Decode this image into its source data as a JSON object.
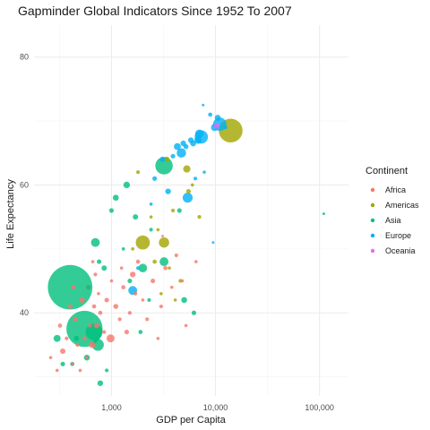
{
  "chart_data": {
    "type": "scatter",
    "title": "Gapminder Global Indicators Since 1952 To 2007",
    "xlabel": "GDP per Capita",
    "ylabel": "Life Expectancy",
    "x_scale": "log10",
    "xlim": [
      180,
      190000
    ],
    "ylim": [
      27,
      85
    ],
    "x_ticks": [
      1000,
      10000,
      100000
    ],
    "x_tick_labels": [
      "1,000",
      "10,000",
      "100,000"
    ],
    "y_ticks": [
      40,
      60,
      80
    ],
    "y_tick_labels": [
      "40",
      "60",
      "80"
    ],
    "grid": true,
    "legend_title": "Continent",
    "legend_position": "right",
    "marker_alpha": 0.8,
    "size_variable": "population (millions)",
    "series": [
      {
        "name": "Africa",
        "color": "#F8766D",
        "points": [
          {
            "x": 260,
            "y": 33,
            "pop": 3
          },
          {
            "x": 320,
            "y": 38,
            "pop": 5
          },
          {
            "x": 340,
            "y": 34,
            "pop": 8
          },
          {
            "x": 370,
            "y": 36,
            "pop": 4
          },
          {
            "x": 400,
            "y": 41,
            "pop": 6
          },
          {
            "x": 420,
            "y": 32,
            "pop": 3
          },
          {
            "x": 450,
            "y": 39,
            "pop": 7
          },
          {
            "x": 470,
            "y": 35,
            "pop": 4
          },
          {
            "x": 500,
            "y": 31,
            "pop": 3
          },
          {
            "x": 520,
            "y": 42,
            "pop": 9
          },
          {
            "x": 550,
            "y": 36,
            "pop": 5
          },
          {
            "x": 580,
            "y": 33,
            "pop": 3
          },
          {
            "x": 600,
            "y": 44,
            "pop": 6
          },
          {
            "x": 620,
            "y": 38,
            "pop": 4
          },
          {
            "x": 650,
            "y": 35,
            "pop": 12
          },
          {
            "x": 680,
            "y": 41,
            "pop": 5
          },
          {
            "x": 700,
            "y": 46,
            "pop": 4
          },
          {
            "x": 720,
            "y": 38,
            "pop": 8
          },
          {
            "x": 750,
            "y": 43,
            "pop": 3
          },
          {
            "x": 780,
            "y": 40,
            "pop": 5
          },
          {
            "x": 850,
            "y": 37,
            "pop": 4
          },
          {
            "x": 900,
            "y": 42,
            "pop": 6
          },
          {
            "x": 980,
            "y": 36,
            "pop": 18
          },
          {
            "x": 1000,
            "y": 45,
            "pop": 3
          },
          {
            "x": 1100,
            "y": 41,
            "pop": 7
          },
          {
            "x": 1200,
            "y": 39,
            "pop": 4
          },
          {
            "x": 1300,
            "y": 44,
            "pop": 5
          },
          {
            "x": 1400,
            "y": 37,
            "pop": 6
          },
          {
            "x": 1500,
            "y": 40,
            "pop": 4
          },
          {
            "x": 1600,
            "y": 46,
            "pop": 9
          },
          {
            "x": 1700,
            "y": 43,
            "pop": 4
          },
          {
            "x": 1800,
            "y": 48,
            "pop": 5
          },
          {
            "x": 2000,
            "y": 42,
            "pop": 3
          },
          {
            "x": 2200,
            "y": 39,
            "pop": 4
          },
          {
            "x": 2500,
            "y": 45,
            "pop": 6
          },
          {
            "x": 3000,
            "y": 41,
            "pop": 4
          },
          {
            "x": 3300,
            "y": 47,
            "pop": 5
          },
          {
            "x": 3800,
            "y": 44,
            "pop": 3
          },
          {
            "x": 4200,
            "y": 49,
            "pop": 4
          },
          {
            "x": 4800,
            "y": 45,
            "pop": 3
          },
          {
            "x": 6500,
            "y": 48,
            "pop": 3
          },
          {
            "x": 300,
            "y": 31,
            "pop": 3
          },
          {
            "x": 430,
            "y": 44,
            "pop": 5
          },
          {
            "x": 660,
            "y": 48,
            "pop": 3
          },
          {
            "x": 1250,
            "y": 47,
            "pop": 3
          },
          {
            "x": 2800,
            "y": 36,
            "pop": 3
          },
          {
            "x": 3100,
            "y": 52,
            "pop": 2
          },
          {
            "x": 5200,
            "y": 38,
            "pop": 3
          }
        ]
      },
      {
        "name": "Americas",
        "color": "#A3A500",
        "points": [
          {
            "x": 14000,
            "y": 68.5,
            "pop": 160
          },
          {
            "x": 2000,
            "y": 51,
            "pop": 56
          },
          {
            "x": 3200,
            "y": 51,
            "pop": 30
          },
          {
            "x": 3400,
            "y": 64,
            "pop": 8
          },
          {
            "x": 5300,
            "y": 62.5,
            "pop": 15
          },
          {
            "x": 5500,
            "y": 59,
            "pop": 6
          },
          {
            "x": 4600,
            "y": 45,
            "pop": 4
          },
          {
            "x": 3000,
            "y": 43,
            "pop": 3
          },
          {
            "x": 2600,
            "y": 48,
            "pop": 5
          },
          {
            "x": 1800,
            "y": 62,
            "pop": 4
          },
          {
            "x": 2800,
            "y": 53,
            "pop": 3
          },
          {
            "x": 3900,
            "y": 56,
            "pop": 4
          },
          {
            "x": 2400,
            "y": 55,
            "pop": 3
          },
          {
            "x": 7000,
            "y": 55,
            "pop": 4
          },
          {
            "x": 4100,
            "y": 42,
            "pop": 3
          },
          {
            "x": 1600,
            "y": 50,
            "pop": 3
          },
          {
            "x": 6000,
            "y": 60,
            "pop": 3
          },
          {
            "x": 3600,
            "y": 47,
            "pop": 3
          }
        ]
      },
      {
        "name": "Asia",
        "color": "#00BF7D",
        "points": [
          {
            "x": 400,
            "y": 44,
            "pop": 560
          },
          {
            "x": 550,
            "y": 37.5,
            "pop": 370
          },
          {
            "x": 680,
            "y": 37,
            "pop": 80
          },
          {
            "x": 740,
            "y": 35,
            "pop": 40
          },
          {
            "x": 3200,
            "y": 63,
            "pop": 86
          },
          {
            "x": 700,
            "y": 51,
            "pop": 22
          },
          {
            "x": 1100,
            "y": 58,
            "pop": 10
          },
          {
            "x": 1000,
            "y": 56,
            "pop": 6
          },
          {
            "x": 1400,
            "y": 60,
            "pop": 12
          },
          {
            "x": 1700,
            "y": 55,
            "pop": 8
          },
          {
            "x": 2000,
            "y": 47,
            "pop": 21
          },
          {
            "x": 2400,
            "y": 53,
            "pop": 4
          },
          {
            "x": 3200,
            "y": 48,
            "pop": 22
          },
          {
            "x": 4500,
            "y": 56,
            "pop": 6
          },
          {
            "x": 5000,
            "y": 42,
            "pop": 10
          },
          {
            "x": 6200,
            "y": 40,
            "pop": 6
          },
          {
            "x": 850,
            "y": 47,
            "pop": 8
          },
          {
            "x": 600,
            "y": 44,
            "pop": 6
          },
          {
            "x": 580,
            "y": 33,
            "pop": 10
          },
          {
            "x": 300,
            "y": 36,
            "pop": 14
          },
          {
            "x": 340,
            "y": 32,
            "pop": 6
          },
          {
            "x": 420,
            "y": 32,
            "pop": 5
          },
          {
            "x": 460,
            "y": 36,
            "pop": 8
          },
          {
            "x": 780,
            "y": 29,
            "pop": 9
          },
          {
            "x": 900,
            "y": 31,
            "pop": 4
          },
          {
            "x": 1500,
            "y": 45,
            "pop": 6
          },
          {
            "x": 1900,
            "y": 37,
            "pop": 5
          },
          {
            "x": 2300,
            "y": 42,
            "pop": 4
          },
          {
            "x": 1300,
            "y": 50,
            "pop": 3
          },
          {
            "x": 760,
            "y": 48,
            "pop": 6
          },
          {
            "x": 110000,
            "y": 55.5,
            "pop": 2
          }
        ]
      },
      {
        "name": "Europe",
        "color": "#00B0F6",
        "points": [
          {
            "x": 11000,
            "y": 69.5,
            "pop": 50
          },
          {
            "x": 9800,
            "y": 69,
            "pop": 15
          },
          {
            "x": 7300,
            "y": 67.5,
            "pop": 50
          },
          {
            "x": 7000,
            "y": 68,
            "pop": 20
          },
          {
            "x": 6800,
            "y": 67,
            "pop": 15
          },
          {
            "x": 6100,
            "y": 66.5,
            "pop": 10
          },
          {
            "x": 5800,
            "y": 67,
            "pop": 9
          },
          {
            "x": 5200,
            "y": 66,
            "pop": 7
          },
          {
            "x": 4900,
            "y": 66.5,
            "pop": 9
          },
          {
            "x": 4300,
            "y": 66,
            "pop": 14
          },
          {
            "x": 3900,
            "y": 64.5,
            "pop": 6
          },
          {
            "x": 4700,
            "y": 65,
            "pop": 25
          },
          {
            "x": 3100,
            "y": 64,
            "pop": 8
          },
          {
            "x": 5400,
            "y": 58,
            "pop": 28
          },
          {
            "x": 3500,
            "y": 59,
            "pop": 9
          },
          {
            "x": 2600,
            "y": 61,
            "pop": 6
          },
          {
            "x": 1600,
            "y": 43.5,
            "pop": 22
          },
          {
            "x": 8900,
            "y": 71,
            "pop": 5
          },
          {
            "x": 10500,
            "y": 70.5,
            "pop": 10
          },
          {
            "x": 12500,
            "y": 69,
            "pop": 4
          },
          {
            "x": 7600,
            "y": 72.5,
            "pop": 2
          },
          {
            "x": 6400,
            "y": 61,
            "pop": 4
          },
          {
            "x": 7800,
            "y": 62,
            "pop": 3
          },
          {
            "x": 2400,
            "y": 57,
            "pop": 3
          },
          {
            "x": 9500,
            "y": 51,
            "pop": 2
          },
          {
            "x": 1800,
            "y": 47,
            "pop": 4
          }
        ]
      },
      {
        "name": "Oceania",
        "color": "#E76BF3",
        "points": [
          {
            "x": 10200,
            "y": 69.2,
            "pop": 8
          },
          {
            "x": 10600,
            "y": 69.4,
            "pop": 2
          }
        ]
      }
    ]
  }
}
